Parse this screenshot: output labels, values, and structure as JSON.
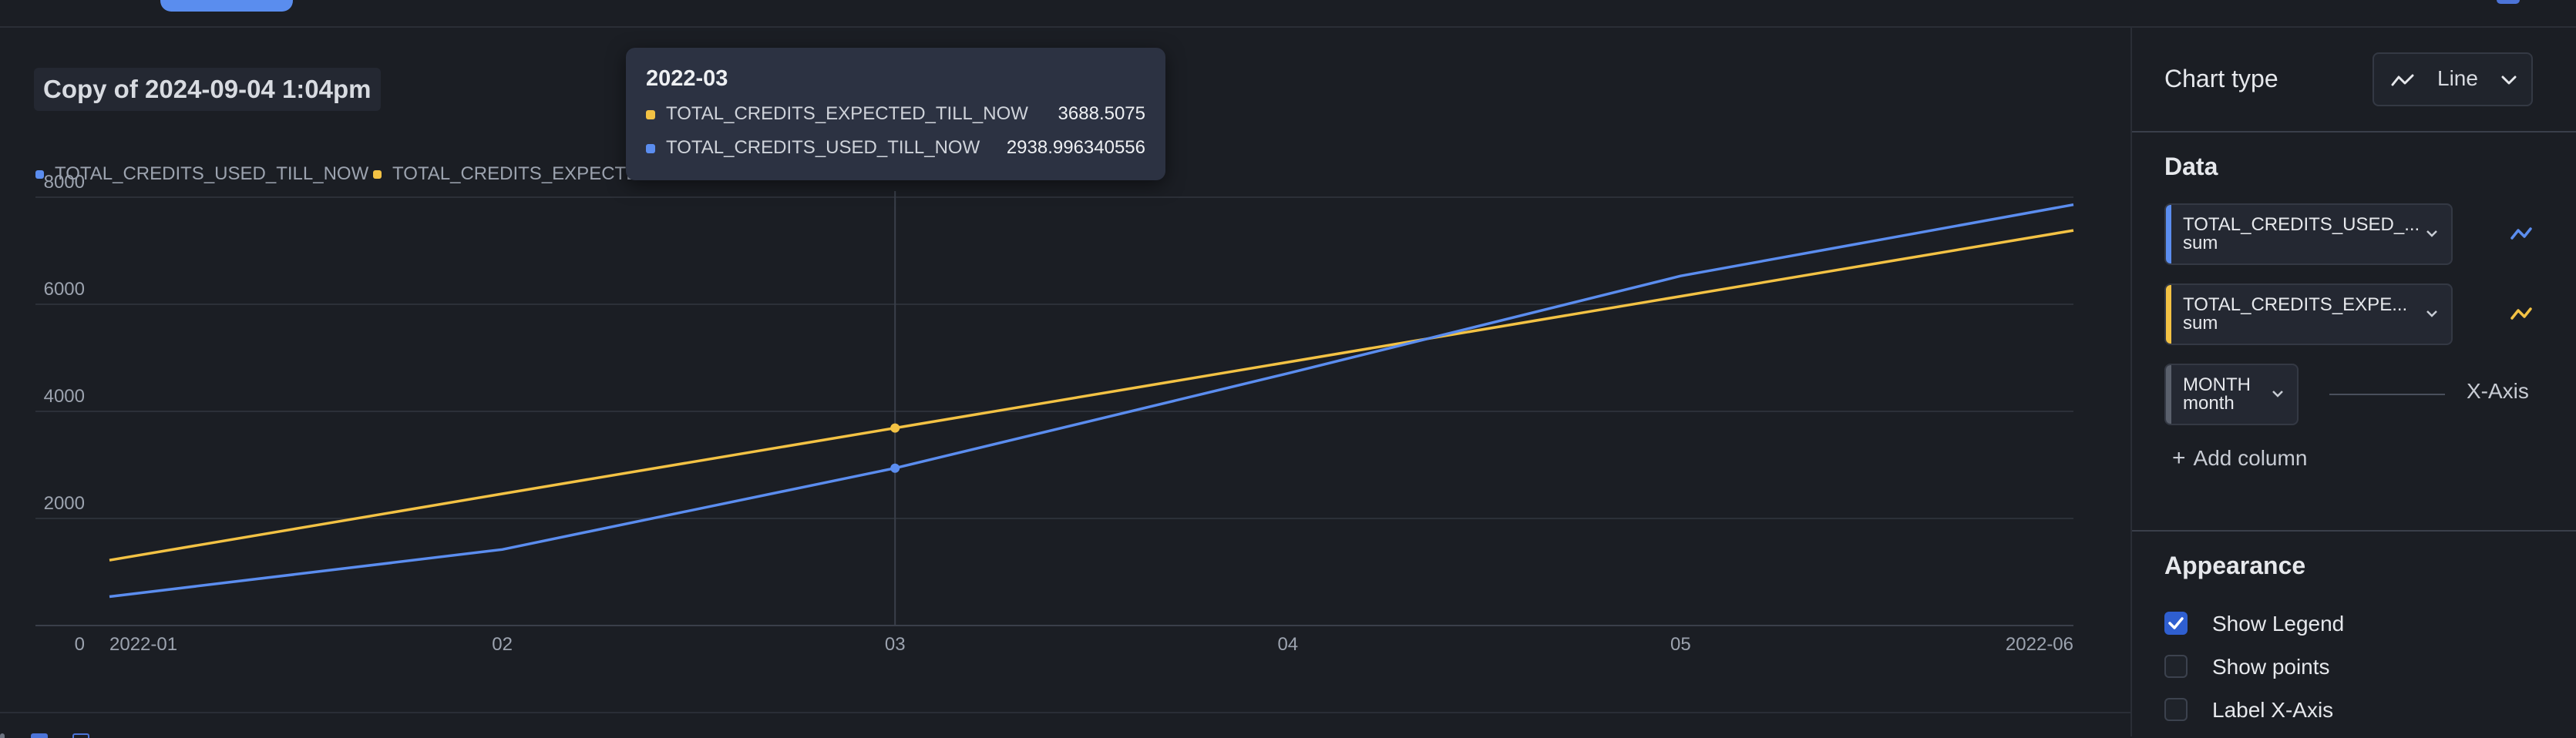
{
  "chart": {
    "title": "Copy of 2024-09-04 1:04pm"
  },
  "chart_data": {
    "type": "line",
    "categories": [
      "2022-01",
      "02",
      "03",
      "04",
      "05",
      "2022-06"
    ],
    "series": [
      {
        "name": "TOTAL_CREDITS_USED_TILL_NOW",
        "color": "#5b8def",
        "values": [
          540,
          1420,
          2938.996340556,
          4710,
          6530,
          7860
        ]
      },
      {
        "name": "TOTAL_CREDITS_EXPECTED_TILL_NOW",
        "color": "#f3c244",
        "values": [
          1220,
          2460,
          3688.5075,
          4920,
          6150,
          7380
        ]
      }
    ],
    "yticks": [
      "8000",
      "6000",
      "4000",
      "2000",
      "0"
    ],
    "ylim": [
      0,
      8000
    ],
    "grid": true,
    "legend_position": "top-left",
    "highlighted_category_index": 2
  },
  "legend": {
    "items": [
      {
        "label": "TOTAL_CREDITS_USED_TILL_NOW",
        "color": "#5b8def"
      },
      {
        "label": "TOTAL_CREDITS_EXPECTE",
        "color": "#f3c244"
      }
    ]
  },
  "tooltip": {
    "title": "2022-03",
    "rows": [
      {
        "name": "TOTAL_CREDITS_EXPECTED_TILL_NOW",
        "value": "3688.5075",
        "color": "#f3c244"
      },
      {
        "name": "TOTAL_CREDITS_USED_TILL_NOW",
        "value": "2938.996340556",
        "color": "#5b8def"
      }
    ]
  },
  "sidebar": {
    "chart_type_label": "Chart type",
    "chart_type_value": "Line",
    "data_heading": "Data",
    "columns": [
      {
        "name": "TOTAL_CREDITS_USED_...",
        "agg": "sum",
        "color": "#5b8def"
      },
      {
        "name": "TOTAL_CREDITS_EXPE...",
        "agg": "sum",
        "color": "#f3c244"
      }
    ],
    "xaxis_column": {
      "name": "MONTH",
      "agg": "month",
      "color": "#5a606c"
    },
    "xaxis_label": "X-Axis",
    "add_column": "Add column",
    "appearance_heading": "Appearance",
    "options": [
      {
        "label": "Show Legend",
        "checked": true
      },
      {
        "label": "Show points",
        "checked": false
      },
      {
        "label": "Label X-Axis",
        "checked": false
      }
    ]
  }
}
